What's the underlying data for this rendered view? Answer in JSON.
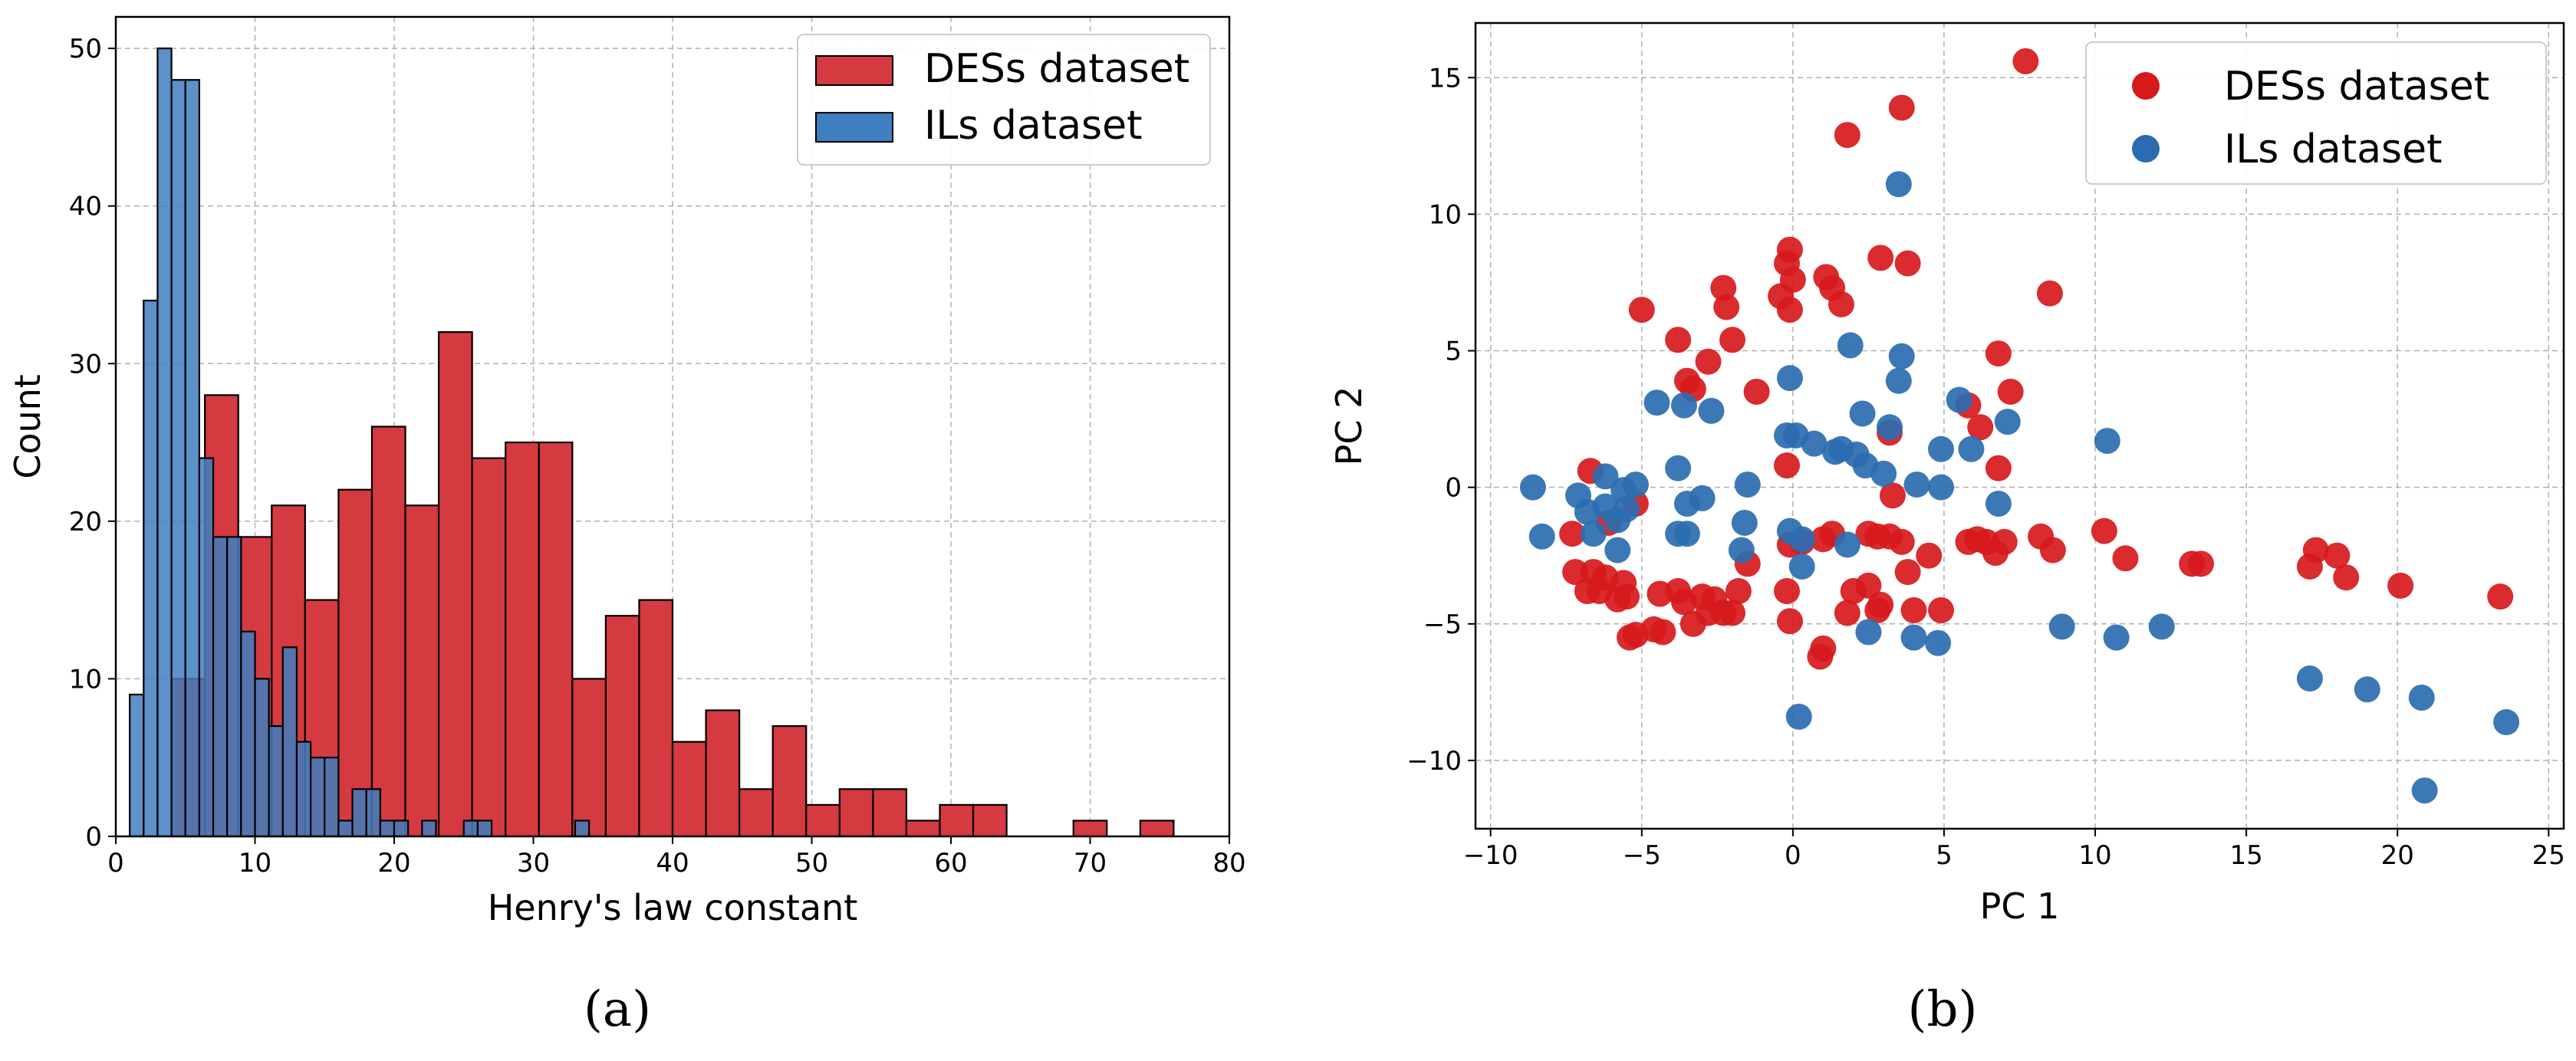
{
  "colors": {
    "des": "#d7191c",
    "ils": "#2b6cb0",
    "hist_des": "#d43a40",
    "hist_ils": "#3f7ec0"
  },
  "panels": {
    "a": "(a)",
    "b": "(b)"
  },
  "chart_data": [
    {
      "type": "bar",
      "subtype": "histogram",
      "xlabel": "Henry's law constant",
      "ylabel": "Count",
      "xlim": [
        0,
        80
      ],
      "ylim": [
        0,
        52
      ],
      "xticks": [
        "0",
        "10",
        "20",
        "30",
        "40",
        "50",
        "60",
        "70",
        "80"
      ],
      "yticks": [
        "0",
        "10",
        "20",
        "30",
        "40",
        "50"
      ],
      "grid": true,
      "legend_position": "top-right",
      "series": [
        {
          "name": "DESs dataset",
          "bin_width": 2.4,
          "bin_starts": [
            4.0,
            6.4,
            8.8,
            11.2,
            13.6,
            16.0,
            18.4,
            20.8,
            23.2,
            25.6,
            28.0,
            30.4,
            32.8,
            35.2,
            37.6,
            40.0,
            42.4,
            44.8,
            47.2,
            49.6,
            52.0,
            54.4,
            56.8,
            59.2,
            61.6,
            64.0,
            66.4,
            68.8,
            71.2,
            73.6,
            76.0
          ],
          "counts": [
            10,
            28,
            19,
            21,
            15,
            22,
            26,
            21,
            32,
            24,
            25,
            25,
            10,
            14,
            15,
            6,
            8,
            3,
            7,
            2,
            3,
            3,
            1,
            2,
            2,
            0,
            0,
            1,
            0,
            1,
            0
          ]
        },
        {
          "name": "ILs dataset",
          "bin_width": 1.0,
          "bin_starts": [
            1,
            2,
            3,
            4,
            5,
            6,
            7,
            8,
            9,
            10,
            11,
            12,
            13,
            14,
            15,
            16,
            17,
            18,
            19,
            20,
            21,
            22,
            23,
            24,
            25,
            26,
            27,
            28,
            29,
            30,
            31,
            32,
            33,
            34,
            35
          ],
          "counts": [
            9,
            34,
            50,
            48,
            48,
            24,
            19,
            19,
            13,
            10,
            7,
            12,
            6,
            5,
            5,
            1,
            3,
            3,
            1,
            1,
            0,
            1,
            0,
            0,
            1,
            1,
            0,
            0,
            0,
            0,
            0,
            0,
            1,
            0,
            0
          ]
        }
      ]
    },
    {
      "type": "scatter",
      "xlabel": "PC 1",
      "ylabel": "PC 2",
      "xlim": [
        -10.5,
        25.5
      ],
      "ylim": [
        -12.5,
        17
      ],
      "xticks": [
        "−10",
        "−5",
        "0",
        "5",
        "10",
        "15",
        "20",
        "25"
      ],
      "yticks": [
        "−10",
        "−5",
        "0",
        "5",
        "10",
        "15"
      ],
      "grid": true,
      "legend_position": "top-right",
      "series": [
        {
          "name": "DESs dataset",
          "points": [
            [
              7.7,
              15.6
            ],
            [
              3.6,
              13.9
            ],
            [
              1.8,
              12.9
            ],
            [
              2.9,
              8.4
            ],
            [
              3.8,
              8.2
            ],
            [
              -0.1,
              8.7
            ],
            [
              -0.2,
              8.2
            ],
            [
              0.0,
              7.6
            ],
            [
              1.1,
              7.7
            ],
            [
              1.3,
              7.3
            ],
            [
              1.6,
              6.7
            ],
            [
              8.5,
              7.1
            ],
            [
              -2.3,
              7.3
            ],
            [
              -2.2,
              6.6
            ],
            [
              -0.1,
              6.5
            ],
            [
              -0.4,
              7.0
            ],
            [
              -5.0,
              6.5
            ],
            [
              -3.8,
              5.4
            ],
            [
              -2.0,
              5.4
            ],
            [
              -2.8,
              4.6
            ],
            [
              -3.5,
              3.9
            ],
            [
              -3.3,
              3.6
            ],
            [
              -1.2,
              3.5
            ],
            [
              6.8,
              4.9
            ],
            [
              7.2,
              3.5
            ],
            [
              5.8,
              3.0
            ],
            [
              6.2,
              2.2
            ],
            [
              3.2,
              2.0
            ],
            [
              -0.2,
              0.8
            ],
            [
              6.8,
              0.7
            ],
            [
              3.3,
              -0.3
            ],
            [
              -6.7,
              0.6
            ],
            [
              -5.2,
              -0.6
            ],
            [
              -6.1,
              -1.3
            ],
            [
              -7.3,
              -1.7
            ],
            [
              -7.2,
              -3.1
            ],
            [
              -6.6,
              -3.1
            ],
            [
              -6.2,
              -3.3
            ],
            [
              -5.6,
              -3.5
            ],
            [
              -6.8,
              -3.8
            ],
            [
              -6.4,
              -3.8
            ],
            [
              -5.8,
              -4.1
            ],
            [
              -5.5,
              -4.0
            ],
            [
              -4.4,
              -3.9
            ],
            [
              -3.8,
              -3.8
            ],
            [
              -3.6,
              -4.2
            ],
            [
              -3.0,
              -4.0
            ],
            [
              -2.6,
              -4.1
            ],
            [
              -2.3,
              -4.6
            ],
            [
              -2.0,
              -4.6
            ],
            [
              -1.8,
              -3.8
            ],
            [
              -2.8,
              -4.6
            ],
            [
              -3.3,
              -5.0
            ],
            [
              -4.3,
              -5.3
            ],
            [
              -4.6,
              -5.2
            ],
            [
              -5.2,
              -5.4
            ],
            [
              -5.4,
              -5.5
            ],
            [
              -0.2,
              -3.8
            ],
            [
              -0.1,
              -4.9
            ],
            [
              1.0,
              -5.9
            ],
            [
              0.9,
              -6.2
            ],
            [
              -0.1,
              -2.1
            ],
            [
              0.3,
              -2.0
            ],
            [
              1.0,
              -1.9
            ],
            [
              1.3,
              -1.7
            ],
            [
              1.8,
              -4.6
            ],
            [
              2.0,
              -3.8
            ],
            [
              2.5,
              -3.6
            ],
            [
              2.8,
              -4.5
            ],
            [
              2.9,
              -4.3
            ],
            [
              4.0,
              -4.5
            ],
            [
              4.9,
              -4.5
            ],
            [
              2.5,
              -1.7
            ],
            [
              2.8,
              -1.8
            ],
            [
              3.2,
              -1.8
            ],
            [
              3.6,
              -2.0
            ],
            [
              3.8,
              -3.1
            ],
            [
              4.5,
              -2.5
            ],
            [
              5.8,
              -2.0
            ],
            [
              6.1,
              -1.9
            ],
            [
              6.4,
              -2.0
            ],
            [
              6.7,
              -2.4
            ],
            [
              7.0,
              -2.0
            ],
            [
              8.2,
              -1.8
            ],
            [
              8.6,
              -2.3
            ],
            [
              -1.5,
              -2.8
            ],
            [
              10.3,
              -1.6
            ],
            [
              11.0,
              -2.6
            ],
            [
              13.2,
              -2.8
            ],
            [
              13.5,
              -2.8
            ],
            [
              17.1,
              -2.9
            ],
            [
              17.3,
              -2.3
            ],
            [
              18.0,
              -2.5
            ],
            [
              18.3,
              -3.3
            ],
            [
              20.1,
              -3.6
            ],
            [
              23.4,
              -4.0
            ]
          ]
        },
        {
          "name": "ILs dataset",
          "points": [
            [
              3.5,
              11.1
            ],
            [
              1.9,
              5.2
            ],
            [
              3.6,
              4.8
            ],
            [
              3.5,
              3.9
            ],
            [
              -0.1,
              4.0
            ],
            [
              -4.5,
              3.1
            ],
            [
              -3.6,
              3.0
            ],
            [
              -2.7,
              2.8
            ],
            [
              2.3,
              2.7
            ],
            [
              3.2,
              2.2
            ],
            [
              5.5,
              3.2
            ],
            [
              7.1,
              2.4
            ],
            [
              -0.2,
              1.9
            ],
            [
              0.1,
              1.9
            ],
            [
              0.7,
              1.6
            ],
            [
              1.4,
              1.3
            ],
            [
              1.6,
              1.4
            ],
            [
              2.1,
              1.2
            ],
            [
              2.4,
              0.8
            ],
            [
              3.0,
              0.5
            ],
            [
              4.1,
              0.1
            ],
            [
              4.9,
              1.4
            ],
            [
              5.9,
              1.4
            ],
            [
              10.4,
              1.7
            ],
            [
              -3.8,
              0.7
            ],
            [
              -8.6,
              0.0
            ],
            [
              -6.2,
              0.4
            ],
            [
              -7.1,
              -0.3
            ],
            [
              -6.8,
              -0.9
            ],
            [
              -6.2,
              -0.7
            ],
            [
              -5.6,
              -0.1
            ],
            [
              -5.2,
              0.1
            ],
            [
              -5.5,
              -0.8
            ],
            [
              -5.8,
              -1.2
            ],
            [
              -6.6,
              -1.7
            ],
            [
              -5.8,
              -2.3
            ],
            [
              -8.3,
              -1.8
            ],
            [
              -3.8,
              -1.7
            ],
            [
              -3.5,
              -1.7
            ],
            [
              -3.5,
              -0.6
            ],
            [
              -3.0,
              -0.4
            ],
            [
              -1.5,
              0.1
            ],
            [
              -1.6,
              -1.3
            ],
            [
              -1.7,
              -2.3
            ],
            [
              -0.1,
              -1.6
            ],
            [
              0.3,
              -1.9
            ],
            [
              0.3,
              -2.9
            ],
            [
              1.8,
              -2.1
            ],
            [
              4.9,
              0.0
            ],
            [
              6.8,
              -0.6
            ],
            [
              0.2,
              -8.4
            ],
            [
              2.5,
              -5.3
            ],
            [
              4.0,
              -5.5
            ],
            [
              4.8,
              -5.7
            ],
            [
              8.9,
              -5.1
            ],
            [
              10.7,
              -5.5
            ],
            [
              12.2,
              -5.1
            ],
            [
              17.1,
              -7.0
            ],
            [
              19.0,
              -7.4
            ],
            [
              20.8,
              -7.7
            ],
            [
              20.9,
              -11.1
            ],
            [
              23.6,
              -8.6
            ]
          ]
        }
      ]
    }
  ]
}
